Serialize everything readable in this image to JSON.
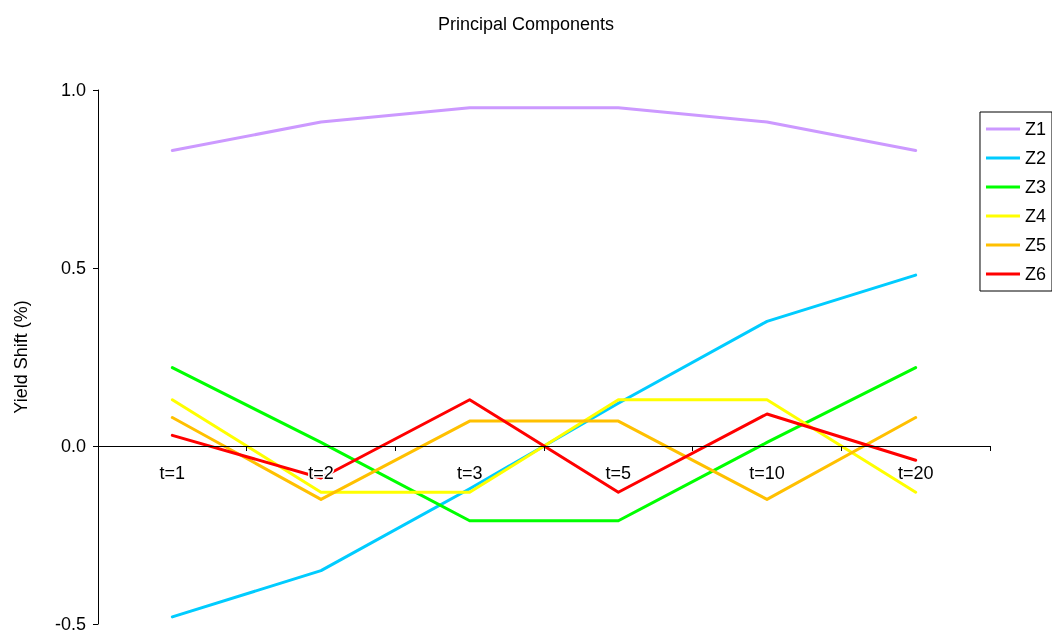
{
  "chart_data": {
    "type": "line",
    "title": "Principal Components",
    "ylabel": "Yield Shift (%)",
    "categories": [
      "t=1",
      "t=2",
      "t=3",
      "t=5",
      "t=10",
      "t=20"
    ],
    "series": [
      {
        "name": "Z1",
        "color": "#cc99ff",
        "values": [
          0.83,
          0.91,
          0.95,
          0.95,
          0.91,
          0.83
        ]
      },
      {
        "name": "Z2",
        "color": "#00ccff",
        "values": [
          -0.48,
          -0.35,
          -0.12,
          0.12,
          0.35,
          0.48
        ]
      },
      {
        "name": "Z3",
        "color": "#00ff00",
        "values": [
          0.22,
          0.01,
          -0.21,
          -0.21,
          0.01,
          0.22
        ]
      },
      {
        "name": "Z4",
        "color": "#ffff00",
        "values": [
          0.13,
          -0.13,
          -0.13,
          0.13,
          0.13,
          -0.13
        ]
      },
      {
        "name": "Z5",
        "color": "#ffc000",
        "values": [
          0.08,
          -0.15,
          0.07,
          0.07,
          -0.15,
          0.08
        ]
      },
      {
        "name": "Z6",
        "color": "#ff0000",
        "values": [
          0.03,
          -0.09,
          0.13,
          -0.13,
          0.09,
          -0.04
        ]
      }
    ],
    "ylim": [
      -0.5,
      1
    ],
    "yticks": [
      {
        "value": -0.5,
        "label": "-0.5"
      },
      {
        "value": 0,
        "label": "0.0"
      },
      {
        "value": 0.5,
        "label": "0.5"
      },
      {
        "value": 1,
        "label": "1.0"
      }
    ],
    "grid": false,
    "legend": "right",
    "marker": "none",
    "line_style": "solid"
  }
}
